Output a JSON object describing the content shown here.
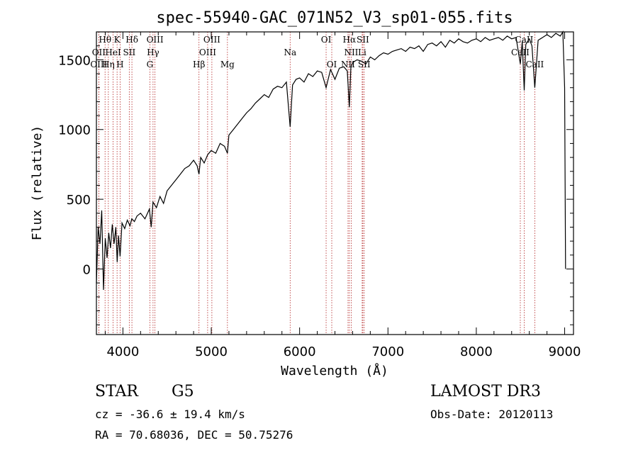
{
  "chart_data": {
    "type": "line",
    "title": "spec-55940-GAC_071N52_V3_sp01-055.fits",
    "xlabel": "Wavelength (Å)",
    "ylabel": "Flux (relative)",
    "xlim": [
      3700,
      9100
    ],
    "ylim": [
      -470,
      1700
    ],
    "xticks": [
      4000,
      5000,
      6000,
      7000,
      8000,
      9000
    ],
    "yticks": [
      0,
      500,
      1000,
      1500
    ],
    "series": [
      {
        "name": "spectrum",
        "x": [
          3700,
          3720,
          3740,
          3760,
          3780,
          3800,
          3820,
          3840,
          3860,
          3880,
          3900,
          3920,
          3935,
          3950,
          3968,
          3990,
          4020,
          4050,
          4080,
          4100,
          4130,
          4160,
          4200,
          4250,
          4300,
          4320,
          4340,
          4380,
          4420,
          4460,
          4500,
          4550,
          4600,
          4650,
          4700,
          4750,
          4800,
          4840,
          4861,
          4880,
          4920,
          4960,
          5000,
          5050,
          5100,
          5150,
          5183,
          5200,
          5250,
          5300,
          5350,
          5400,
          5450,
          5500,
          5550,
          5600,
          5650,
          5700,
          5750,
          5800,
          5850,
          5893,
          5920,
          5960,
          6000,
          6050,
          6100,
          6150,
          6200,
          6250,
          6300,
          6350,
          6400,
          6450,
          6500,
          6540,
          6563,
          6580,
          6600,
          6650,
          6700,
          6750,
          6800,
          6850,
          6900,
          6950,
          7000,
          7050,
          7100,
          7150,
          7200,
          7250,
          7300,
          7350,
          7400,
          7450,
          7500,
          7550,
          7600,
          7650,
          7700,
          7750,
          7800,
          7850,
          7900,
          7950,
          8000,
          8050,
          8100,
          8150,
          8200,
          8250,
          8300,
          8350,
          8400,
          8450,
          8498,
          8520,
          8542,
          8560,
          8600,
          8630,
          8662,
          8700,
          8750,
          8800,
          8850,
          8900,
          8950,
          8980,
          9000,
          9010
        ],
        "values": [
          -100,
          300,
          180,
          420,
          -150,
          220,
          80,
          260,
          150,
          320,
          180,
          300,
          50,
          240,
          90,
          330,
          290,
          350,
          310,
          360,
          340,
          380,
          400,
          360,
          430,
          300,
          480,
          440,
          520,
          470,
          560,
          600,
          640,
          680,
          720,
          740,
          780,
          740,
          680,
          800,
          760,
          820,
          850,
          830,
          900,
          880,
          830,
          960,
          1000,
          1040,
          1080,
          1120,
          1150,
          1190,
          1220,
          1250,
          1230,
          1290,
          1310,
          1300,
          1340,
          1020,
          1320,
          1360,
          1370,
          1340,
          1400,
          1380,
          1420,
          1410,
          1300,
          1430,
          1360,
          1440,
          1450,
          1420,
          1160,
          1440,
          1480,
          1500,
          1490,
          1470,
          1520,
          1500,
          1530,
          1550,
          1540,
          1560,
          1570,
          1580,
          1560,
          1590,
          1580,
          1600,
          1560,
          1610,
          1620,
          1600,
          1630,
          1590,
          1640,
          1620,
          1650,
          1630,
          1620,
          1640,
          1650,
          1630,
          1660,
          1640,
          1650,
          1660,
          1640,
          1670,
          1650,
          1660,
          1470,
          1630,
          1280,
          1610,
          1650,
          1600,
          1300,
          1640,
          1660,
          1680,
          1660,
          1690,
          1670,
          1700,
          1300,
          0
        ]
      }
    ],
    "lines": [
      {
        "name": "Hθ",
        "wavelength": 3798,
        "row": 1
      },
      {
        "name": "OII",
        "wavelength": 3727,
        "row": 2
      },
      {
        "name": "OIII",
        "wavelength": 3727,
        "row": 3
      },
      {
        "name": "HeI",
        "wavelength": 3889,
        "row": 2
      },
      {
        "name": "Hη",
        "wavelength": 3835,
        "row": 3
      },
      {
        "name": "K",
        "wavelength": 3934,
        "row": 1
      },
      {
        "name": "H",
        "wavelength": 3968,
        "row": 3
      },
      {
        "name": "Hδ",
        "wavelength": 4102,
        "row": 1
      },
      {
        "name": "SII",
        "wavelength": 4072,
        "row": 2
      },
      {
        "name": "OIII",
        "wavelength": 4363,
        "row": 1
      },
      {
        "name": "Hγ",
        "wavelength": 4341,
        "row": 2
      },
      {
        "name": "G",
        "wavelength": 4305,
        "row": 3
      },
      {
        "name": "OIII",
        "wavelength": 5007,
        "row": 1
      },
      {
        "name": "OIII",
        "wavelength": 4959,
        "row": 2
      },
      {
        "name": "Hβ",
        "wavelength": 4861,
        "row": 3
      },
      {
        "name": "Mg",
        "wavelength": 5183,
        "row": 3
      },
      {
        "name": "Na",
        "wavelength": 5893,
        "row": 2
      },
      {
        "name": "OI",
        "wavelength": 6300,
        "row": 1
      },
      {
        "name": "OI",
        "wavelength": 6364,
        "row": 3
      },
      {
        "name": "Hα",
        "wavelength": 6563,
        "row": 1
      },
      {
        "name": "SII",
        "wavelength": 6716,
        "row": 1
      },
      {
        "name": "NII",
        "wavelength": 6584,
        "row": 2
      },
      {
        "name": "NII",
        "wavelength": 6548,
        "row": 3
      },
      {
        "name": "Li",
        "wavelength": 6708,
        "row": 2
      },
      {
        "name": "SII",
        "wavelength": 6731,
        "row": 3
      },
      {
        "name": "CaII",
        "wavelength": 8542,
        "row": 1
      },
      {
        "name": "CaII",
        "wavelength": 8498,
        "row": 2
      },
      {
        "name": "CaII",
        "wavelength": 8662,
        "row": 3
      }
    ]
  },
  "info": {
    "class": "STAR",
    "subclass": "G5",
    "survey": "LAMOST DR3",
    "cz": "cz = -36.6 ± 19.4 km/s",
    "obs_date": "Obs-Date: 20120113",
    "radec": "RA =  70.68036, DEC =  50.75276"
  },
  "colors": {
    "spectrum": "#000000",
    "line_marker": "#b22222",
    "axes": "#000000"
  }
}
